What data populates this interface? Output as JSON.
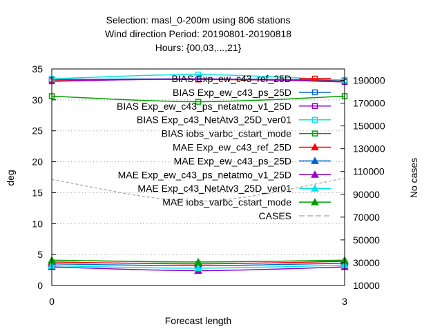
{
  "chart_data": {
    "type": "line",
    "title_lines": [
      "Selection: masl_0-200m using   806 stations",
      "Wind direction   Period: 20190801-20190818",
      "Hours: {00,03,...,21}"
    ],
    "xlabel": "Forecast length",
    "ylabel": "deg",
    "y2label": "No cases",
    "x": [
      0,
      1.5,
      3
    ],
    "xlim": [
      0,
      3
    ],
    "xticks": [
      0,
      3
    ],
    "ylim": [
      0,
      35
    ],
    "yticks": [
      0,
      5,
      10,
      15,
      20,
      25,
      30,
      35
    ],
    "y2lim": [
      10000,
      200000
    ],
    "y2ticks": [
      10000,
      30000,
      50000,
      70000,
      90000,
      110000,
      130000,
      150000,
      170000,
      190000
    ],
    "grid": true,
    "legend_position": "top-right",
    "series": [
      {
        "name": "BIAS Exp_ew_c43_ref_25D",
        "color": "#ff0000",
        "marker": "square",
        "values": [
          33.2,
          33.3,
          33.1
        ]
      },
      {
        "name": "BIAS Exp_ew_c43_ps_25D",
        "color": "#0066cc",
        "marker": "square",
        "values": [
          33.3,
          33.4,
          33.2
        ]
      },
      {
        "name": "BIAS Exp_ew_c43_ps_netatmo_v1_25D",
        "color": "#9900cc",
        "marker": "square",
        "values": [
          33.0,
          33.4,
          32.9
        ]
      },
      {
        "name": "BIAS Exp_c43_NetAtv3_25D_ver01",
        "color": "#00e6e6",
        "marker": "square",
        "values": [
          33.4,
          34.1,
          33.2
        ]
      },
      {
        "name": "BIAS iobs_varbc_cstart_mode",
        "color": "#00a000",
        "marker": "square",
        "values": [
          30.6,
          29.7,
          30.6
        ]
      },
      {
        "name": "MAE Exp_ew_c43_ref_25D",
        "color": "#ff0000",
        "marker": "triangle",
        "values": [
          3.8,
          3.5,
          3.9
        ]
      },
      {
        "name": "MAE Exp_ew_c43_ps_25D",
        "color": "#0066cc",
        "marker": "triangle",
        "values": [
          3.5,
          3.2,
          3.6
        ]
      },
      {
        "name": "MAE Exp_ew_c43_ps_netatmo_v1_25D",
        "color": "#9900cc",
        "marker": "triangle",
        "values": [
          3.0,
          2.4,
          3.0
        ]
      },
      {
        "name": "MAE Exp_c43_NetAtv3_25D_ver01",
        "color": "#00e6e6",
        "marker": "triangle",
        "values": [
          3.2,
          2.8,
          3.3
        ]
      },
      {
        "name": "MAE iobs_varbc_cstart_mode",
        "color": "#00a000",
        "marker": "triangle",
        "values": [
          4.1,
          3.8,
          4.1
        ]
      },
      {
        "name": "CASES",
        "color": "#a0a0a0",
        "marker": "none",
        "axis": "y2",
        "dashed": true,
        "values": [
          103000,
          84000,
          104000
        ]
      }
    ]
  }
}
